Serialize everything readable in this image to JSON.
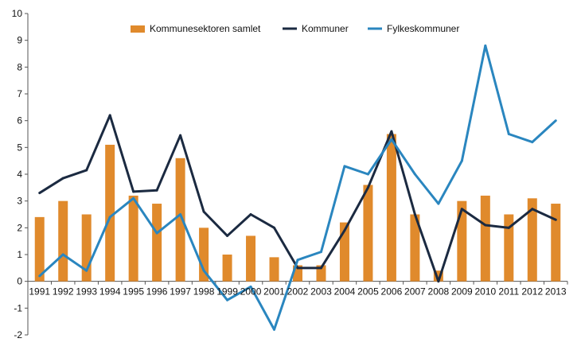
{
  "chart_data": {
    "type": "bar",
    "title": "",
    "xlabel": "",
    "ylabel": "",
    "ylim": [
      -2,
      10
    ],
    "yticks": [
      -2,
      -1,
      0,
      1,
      2,
      3,
      4,
      5,
      6,
      7,
      8,
      9,
      10
    ],
    "grid": false,
    "legend_position": "top-center",
    "categories": [
      "1991",
      "1992",
      "1993",
      "1994",
      "1995",
      "1996",
      "1997",
      "1998",
      "1999",
      "2000",
      "2001",
      "2002",
      "2003",
      "2004",
      "2005",
      "2006",
      "2007",
      "2008",
      "2009",
      "2010",
      "2011",
      "2012",
      "2013"
    ],
    "series": [
      {
        "name": "Kommunesektoren samlet",
        "type": "bar",
        "color": "#E08A2C",
        "values": [
          2.4,
          3.0,
          2.5,
          5.1,
          3.2,
          2.9,
          4.6,
          2.0,
          1.0,
          1.7,
          0.9,
          0.6,
          0.6,
          2.2,
          3.6,
          5.5,
          2.5,
          0.4,
          3.0,
          3.2,
          2.5,
          3.1,
          2.9
        ]
      },
      {
        "name": "Kommuner",
        "type": "line",
        "color": "#1B2A41",
        "values": [
          3.3,
          3.85,
          4.15,
          6.2,
          3.35,
          3.4,
          5.45,
          2.6,
          1.7,
          2.5,
          2.0,
          0.5,
          0.5,
          1.9,
          3.5,
          5.6,
          2.5,
          0.0,
          2.7,
          2.1,
          2.0,
          2.7,
          2.3
        ]
      },
      {
        "name": "Fylkeskommuner",
        "type": "line",
        "color": "#2A86BF",
        "values": [
          0.2,
          1.0,
          0.4,
          2.4,
          3.1,
          1.8,
          2.5,
          0.4,
          -0.7,
          -0.2,
          -1.8,
          0.8,
          1.1,
          4.3,
          4.0,
          5.3,
          4.0,
          2.9,
          4.5,
          8.8,
          5.5,
          5.2,
          6.0
        ]
      }
    ]
  }
}
